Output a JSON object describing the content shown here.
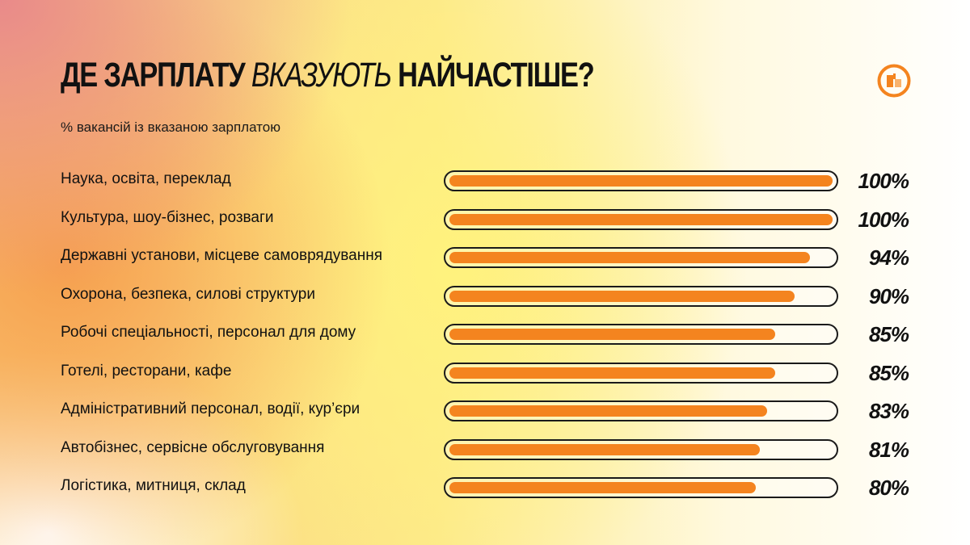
{
  "header": {
    "title_part1": "ДЕ ЗАРПЛАТУ",
    "title_em": "ВКАЗУЮТЬ",
    "title_part2": "НАЙЧАСТІШЕ?",
    "subtitle": "% вакансій із вказаною зарплатою"
  },
  "logo": {
    "icon": "brand-logo-icon",
    "color": "#f4841f"
  },
  "colors": {
    "bar": "#f4841f",
    "outline": "#1a1a1a"
  },
  "chart_data": {
    "type": "bar",
    "orientation": "horizontal",
    "title": "ДЕ ЗАРПЛАТУ ВКАЗУЮТЬ НАЙЧАСТІШЕ?",
    "subtitle": "% вакансій із вказаною зарплатою",
    "xlim": [
      0,
      100
    ],
    "grid": false,
    "categories": [
      "Наука, освіта, переклад",
      "Культура, шоу-бізнес, розваги",
      "Державні установи, місцеве самоврядування",
      "Охорона, безпека, силові структури",
      "Робочі спеціальності, персонал для дому",
      "Готелі, ресторани, кафе",
      "Адміністративний персонал, водії, кур’єри",
      "Автобізнес, сервісне обслуговування",
      "Логістика, митниця, склад"
    ],
    "values": [
      100,
      100,
      94,
      90,
      85,
      85,
      83,
      81,
      80
    ],
    "value_labels": [
      "100%",
      "100%",
      "94%",
      "90%",
      "85%",
      "85%",
      "83%",
      "81%",
      "80%"
    ]
  }
}
